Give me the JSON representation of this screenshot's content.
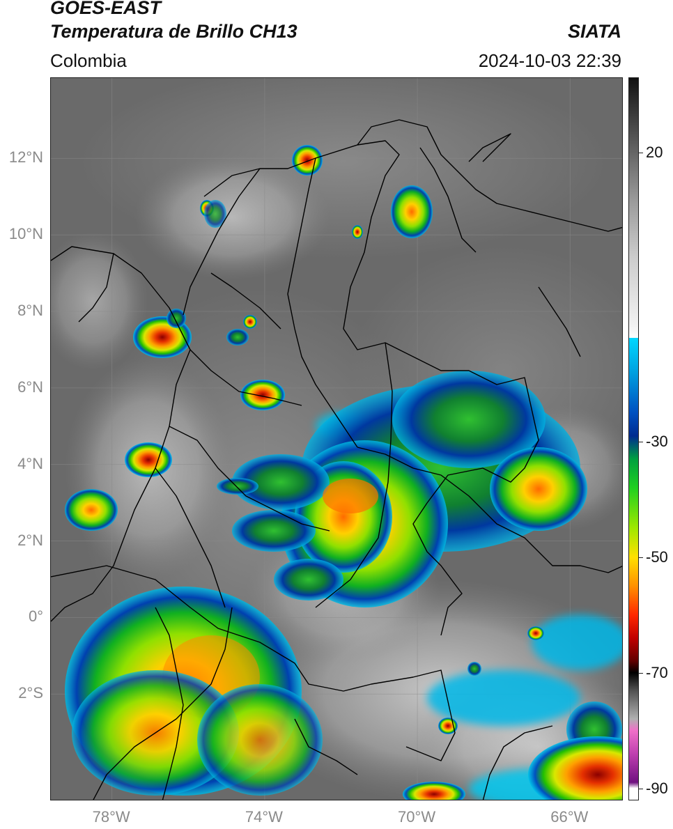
{
  "header": {
    "satellite": "GOES-EAST",
    "product": "Temperatura de Brillo CH13",
    "brand": "SIATA",
    "region": "Colombia",
    "datetime": "2024-10-03 22:39"
  },
  "map": {
    "lat_labels": [
      "12°N",
      "10°N",
      "8°N",
      "6°N",
      "4°N",
      "2°N",
      "0°",
      "2°S"
    ],
    "lon_labels": [
      "78°W",
      "74°W",
      "70°W",
      "66°W"
    ],
    "lat_range": [
      -4.8,
      14.1
    ],
    "lon_range": [
      -79.6,
      -64.6
    ],
    "lat_values": [
      12,
      10,
      8,
      6,
      4,
      2,
      0,
      -2
    ],
    "lon_values": [
      -78,
      -74,
      -70,
      -66
    ]
  },
  "colorbar": {
    "range": [
      -92,
      33
    ],
    "ticks": [
      "20",
      "-30",
      "-50",
      "-70",
      "-90"
    ],
    "tick_values": [
      20,
      -30,
      -50,
      -70,
      -90
    ]
  }
}
